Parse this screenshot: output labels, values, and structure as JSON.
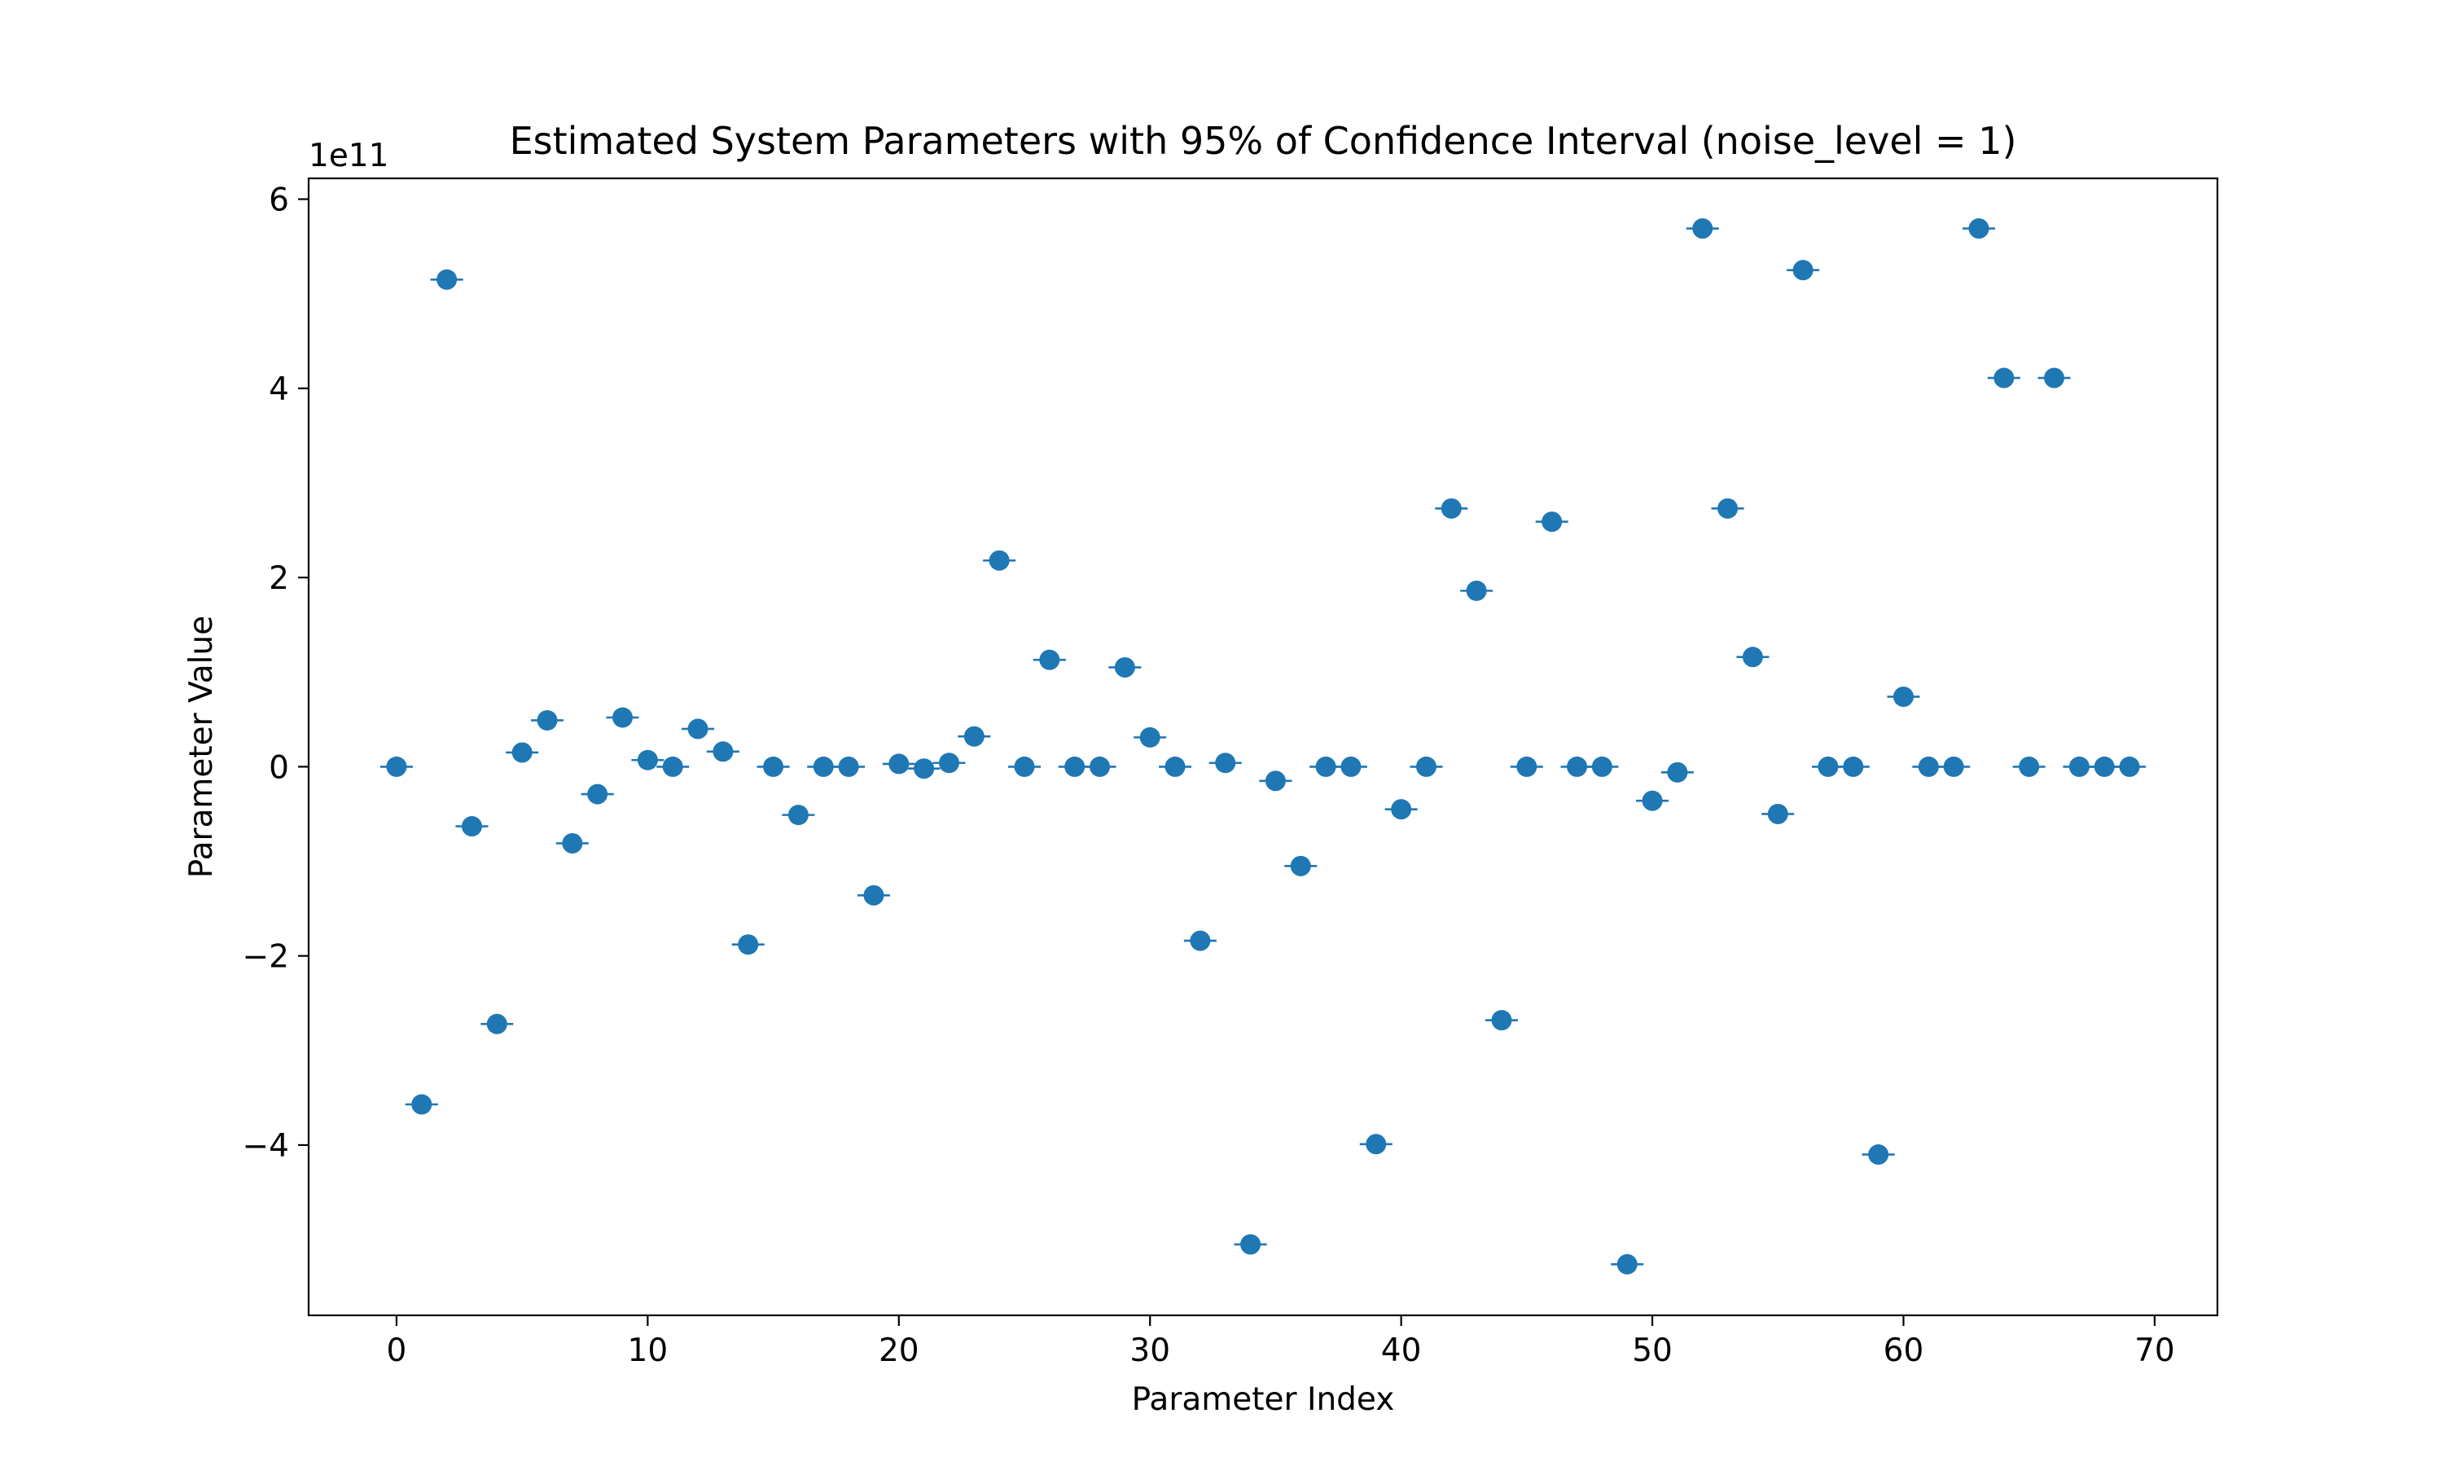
{
  "chart_data": {
    "type": "scatter",
    "title": "Estimated System Parameters with 95% of Confidence Interval (noise_level = 1)",
    "xlabel": "Parameter Index",
    "ylabel": "Parameter Value",
    "y_offset_label": "1e11",
    "xlim": [
      -3.5,
      72.5
    ],
    "ylim": [
      -5.8,
      6.22
    ],
    "x_ticks": [
      0,
      10,
      20,
      30,
      40,
      50,
      60,
      70
    ],
    "x_tick_labels": [
      "0",
      "10",
      "20",
      "30",
      "40",
      "50",
      "60",
      "70"
    ],
    "y_ticks": [
      -4,
      -2,
      0,
      2,
      4,
      6
    ],
    "y_tick_labels": [
      "−4",
      "−2",
      "0",
      "2",
      "4",
      "6"
    ],
    "grid": false,
    "marker_color": "#1f77b4",
    "series": [
      {
        "x": [
          0,
          1,
          2,
          3,
          4,
          5,
          6,
          7,
          8,
          9,
          10,
          11,
          12,
          13,
          14,
          15,
          16,
          17,
          18,
          19,
          20,
          21,
          22,
          23,
          24,
          25,
          26,
          27,
          28,
          29,
          30,
          31,
          32,
          33,
          34,
          35,
          36,
          37,
          38,
          39,
          40,
          41,
          42,
          43,
          44,
          45,
          46,
          47,
          48,
          49,
          50,
          51,
          52,
          53,
          54,
          55,
          56,
          57,
          58,
          59,
          60,
          61,
          62,
          63,
          64,
          65,
          66,
          67,
          68,
          69
        ],
        "values": [
          0,
          -3.57,
          5.15,
          -0.63,
          -2.72,
          0.15,
          0.49,
          -0.81,
          -0.29,
          0.52,
          0.07,
          0,
          0.4,
          0.16,
          -1.88,
          0,
          -0.51,
          0,
          0,
          -1.36,
          0.03,
          -0.02,
          0.04,
          0.32,
          2.18,
          0,
          1.13,
          0,
          0,
          1.05,
          0.31,
          0,
          -1.84,
          0.04,
          -5.05,
          -0.15,
          -1.05,
          0,
          0,
          -3.99,
          -0.45,
          0,
          2.73,
          1.86,
          -2.68,
          0,
          2.59,
          0,
          0,
          -5.26,
          -0.36,
          -0.06,
          5.69,
          2.73,
          1.16,
          -0.5,
          5.25,
          0,
          0,
          -4.1,
          0.74,
          0,
          0,
          5.69,
          4.11,
          0,
          4.11,
          0,
          0,
          0
        ]
      }
    ]
  }
}
